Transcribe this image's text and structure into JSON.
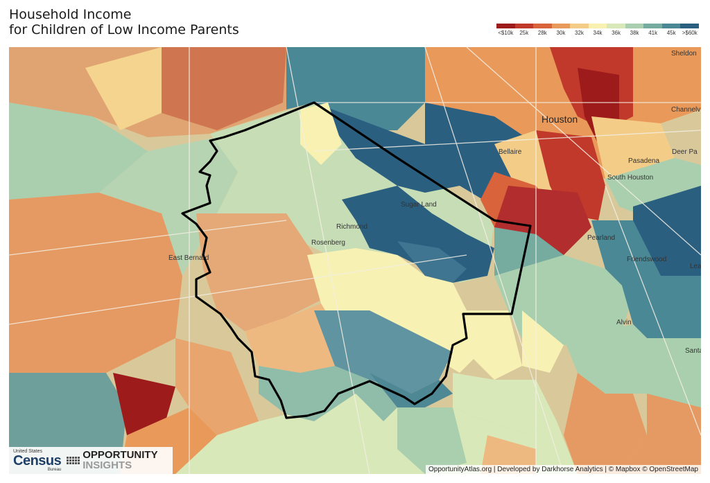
{
  "title": {
    "line1": "Household Income",
    "line2": "for Children of Low Income Parents"
  },
  "legend": {
    "labels": [
      "<$10k",
      "25k",
      "28k",
      "30k",
      "32k",
      "34k",
      "36k",
      "38k",
      "41k",
      "45k",
      ">$60k"
    ],
    "colors": [
      "#9e1b1b",
      "#c0392b",
      "#d9633a",
      "#e99a5b",
      "#f3cd88",
      "#f8f1b2",
      "#d8e8b8",
      "#a9cfae",
      "#76ab9f",
      "#4a8896",
      "#2b5f80"
    ]
  },
  "map": {
    "places": [
      "Houston",
      "Sheldon",
      "Channelv",
      "Deer Pa",
      "Pasadena",
      "South Houston",
      "Bellaire",
      "Sugar Land",
      "Richmond",
      "Rosenberg",
      "East Bernard",
      "Pearland",
      "Friendswood",
      "Lea",
      "Alvin",
      "Santa"
    ],
    "outline_color": "#000000"
  },
  "logo": {
    "census_top": "United States",
    "census_name": "Census",
    "census_bureau": "Bureau",
    "oi_line1": "OPPORTUNITY",
    "oi_line2": "INSIGHTS"
  },
  "attribution": "OpportunityAtlas.org | Developed by Darkhorse Analytics | © Mapbox © OpenStreetMap"
}
